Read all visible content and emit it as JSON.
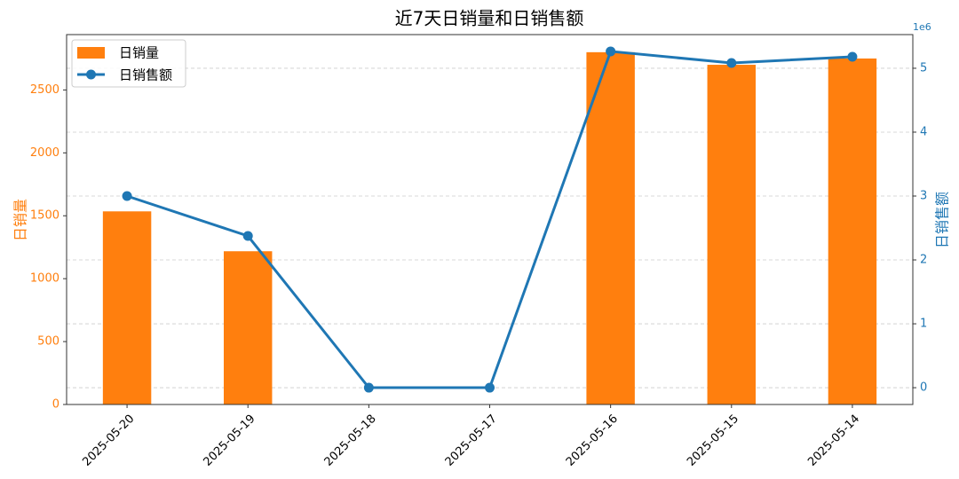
{
  "chart_data": {
    "type": "bar_line",
    "title": "近7天日销量和日销售额",
    "ylabel": "日销量",
    "y2label": "日销售额",
    "y2_offset_label": "1e6",
    "categories": [
      "2025-05-20",
      "2025-05-19",
      "2025-05-18",
      "2025-05-17",
      "2025-05-16",
      "2025-05-15",
      "2025-05-14"
    ],
    "series": [
      {
        "name": "日销量",
        "type": "bar",
        "color": "#ff7f0e",
        "values": [
          1535,
          1218,
          0,
          0,
          2800,
          2700,
          2750
        ]
      },
      {
        "name": "日销售额",
        "type": "line",
        "axis": "y2",
        "color": "#1f77b4",
        "values": [
          3.0,
          2.375,
          0,
          0,
          5.264,
          5.083,
          5.18
        ]
      }
    ],
    "ylim": [
      0,
      2940
    ],
    "yticks": [
      0,
      500,
      1000,
      1500,
      2000,
      2500
    ],
    "y2lim": [
      -0.263,
      5.527
    ],
    "y2ticks": [
      0,
      1,
      2,
      3,
      4,
      5
    ],
    "grid": true,
    "legend": "upper left"
  }
}
